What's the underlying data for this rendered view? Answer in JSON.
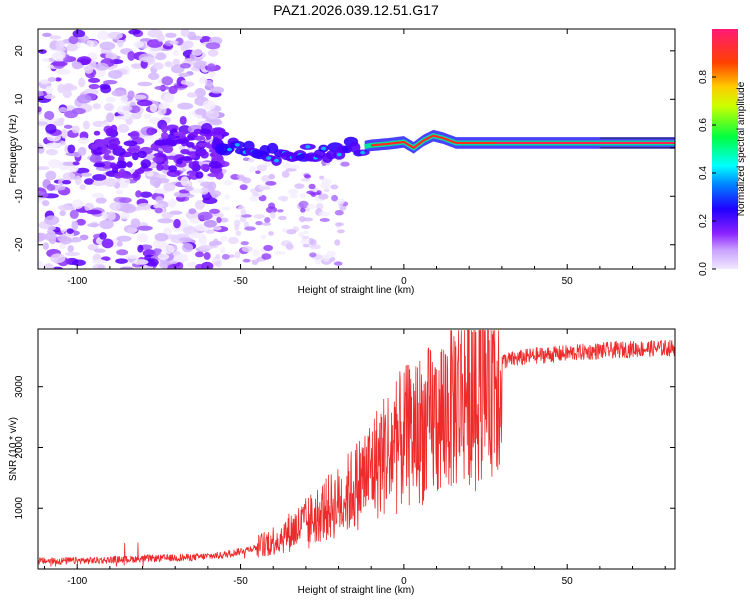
{
  "figure_title": "PAZ1.2026.039.12.51.G17",
  "chart_data": [
    {
      "type": "heatmap",
      "xlabel": "Height of straight line (km)",
      "ylabel": "Frequency (Hz)",
      "xlim": [
        -112,
        83
      ],
      "ylim": [
        -25,
        24.5
      ],
      "xticks": [
        -100,
        -50,
        0,
        50
      ],
      "yticks": [
        -20,
        -10,
        0,
        10,
        20
      ],
      "xtick_labels": [
        "-100",
        "-50",
        "0",
        "50"
      ],
      "ytick_labels": [
        "-20",
        "-10",
        "0",
        "10",
        "20"
      ],
      "colorbar": {
        "label": "Normalized spectral amplitude",
        "range": [
          0,
          1
        ],
        "ticks": [
          0.0,
          0.2,
          0.4,
          0.6,
          0.8
        ],
        "tick_labels": [
          "0.0",
          "0.2",
          "0.4",
          "0.6",
          "0.8"
        ],
        "colors": [
          "#f0e8ff",
          "#c9a0ff",
          "#9b30ff",
          "#6600ff",
          "#0000ff",
          "#00ffff",
          "#00ff00",
          "#ffff00",
          "#ff7f00",
          "#ff0000",
          "#ff1a75"
        ]
      },
      "ridge": {
        "x": [
          -56,
          -48,
          -40,
          -32,
          -26,
          -20,
          -14,
          -10,
          -5,
          0,
          3,
          6,
          9,
          12,
          16,
          20,
          30,
          50,
          83
        ],
        "freq": [
          0.5,
          -0.5,
          -1.5,
          -1.5,
          -1,
          -0.5,
          0,
          0.5,
          0.8,
          1.2,
          0,
          1.5,
          2.5,
          2,
          1.0,
          1.0,
          1.0,
          1.0,
          1.0
        ]
      }
    },
    {
      "type": "line",
      "xlabel": "Height of straight line (km)",
      "ylabel": "SNR (10 * v/v)",
      "xlim": [
        -112,
        83
      ],
      "ylim": [
        0,
        3950
      ],
      "xticks": [
        -100,
        -50,
        0,
        50
      ],
      "yticks": [
        1000,
        2000,
        3000
      ],
      "xtick_labels": [
        "-100",
        "-50",
        "0",
        "50"
      ],
      "ytick_labels": [
        "1000",
        "2000",
        "3000"
      ],
      "line_color": "#ee2b2b",
      "trend": {
        "x": [
          -112,
          -95,
          -80,
          -65,
          -55,
          -45,
          -38,
          -30,
          -25,
          -20,
          -15,
          -10,
          -5,
          0,
          5,
          10,
          15,
          20,
          25,
          30,
          40,
          50,
          60,
          70,
          83
        ],
        "snr": [
          130,
          140,
          170,
          190,
          230,
          360,
          520,
          760,
          950,
          1100,
          1350,
          1650,
          1950,
          2150,
          2300,
          2450,
          2750,
          3050,
          3300,
          3420,
          3510,
          3550,
          3590,
          3620,
          3640
        ]
      }
    }
  ]
}
